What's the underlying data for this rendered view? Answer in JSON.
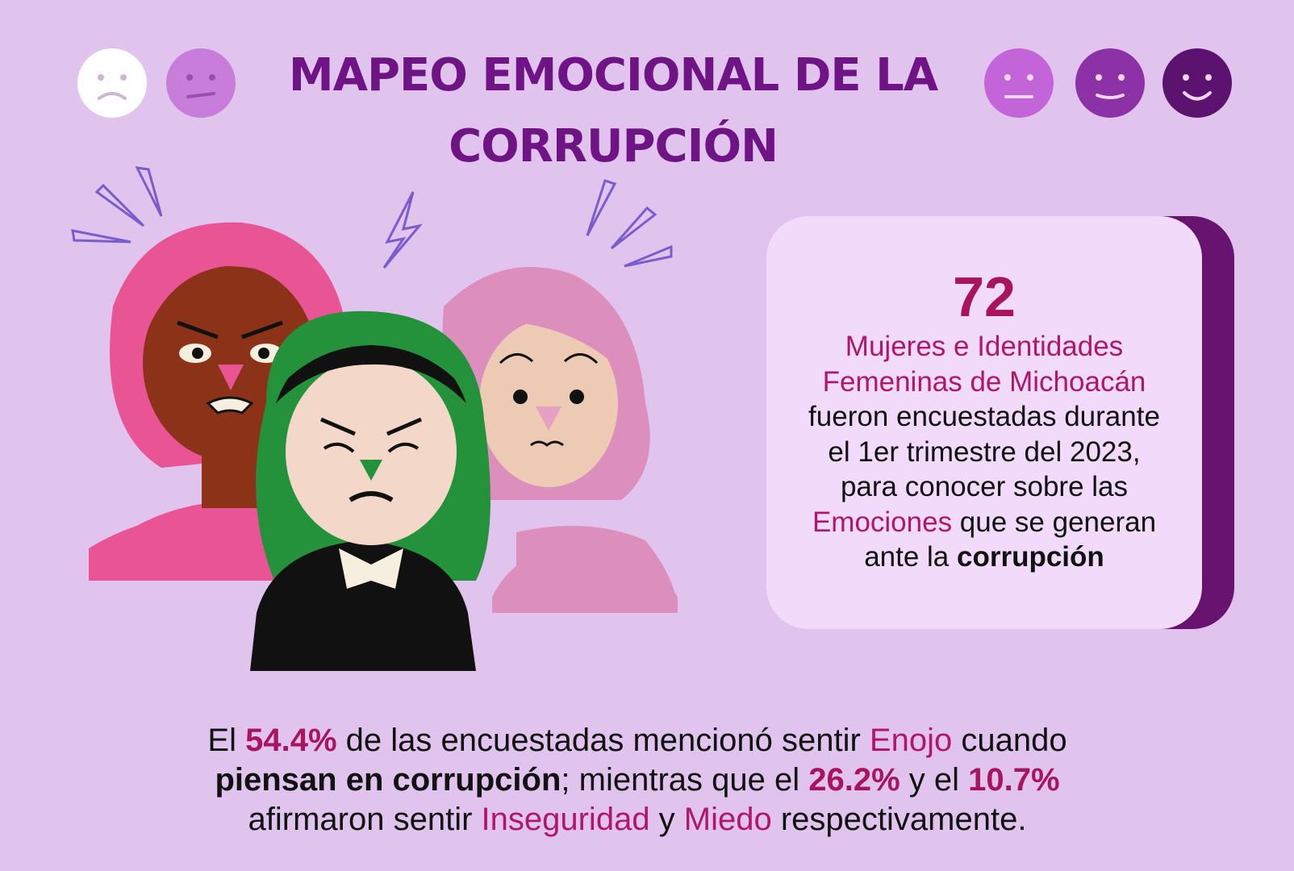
{
  "title": {
    "line1": "MAPEO EMOCIONAL DE LA",
    "line2": "CORRUPCIÓN"
  },
  "faces": [
    {
      "icon": "sad-face-icon",
      "color": "#ffffff"
    },
    {
      "icon": "neutral-face-icon",
      "color": "#c77dd9"
    },
    {
      "icon": "neutral-face-icon",
      "color": "#c364d8"
    },
    {
      "icon": "smile-face-icon",
      "color": "#8c31a6"
    },
    {
      "icon": "happy-face-icon",
      "color": "#5c1370"
    }
  ],
  "card": {
    "number": "72",
    "line1": "Mujeres e Identidades",
    "line2": "Femeninas de Michoacán",
    "line3": "fueron encuestadas durante",
    "line4": "el 1er trimestre del 2023,",
    "line5": "para conocer sobre las",
    "line6_highlight": "Emociones",
    "line6_rest": " que se generan",
    "line7_start": "ante la ",
    "line7_bold": "corrupción"
  },
  "summary": {
    "t1": "El ",
    "p1": "54.4%",
    "t2": " de las encuestadas mencionó sentir ",
    "e1": "Enojo",
    "t3": " cuando",
    "b1": "piensan en corrupción",
    "t4": "; mientras que el ",
    "p2": "26.2%",
    "t5": " y el ",
    "p3": "10.7%",
    "t6": "afirmaron sentir ",
    "e2": "Inseguridad",
    "t7": " y ",
    "e3": "Miedo",
    "t8": " respectivamente."
  },
  "colors": {
    "background": "#e0c4ee",
    "title": "#6f1485",
    "accent": "#a8155e",
    "card": "#f1dafa",
    "card_shadow": "#67136f"
  }
}
